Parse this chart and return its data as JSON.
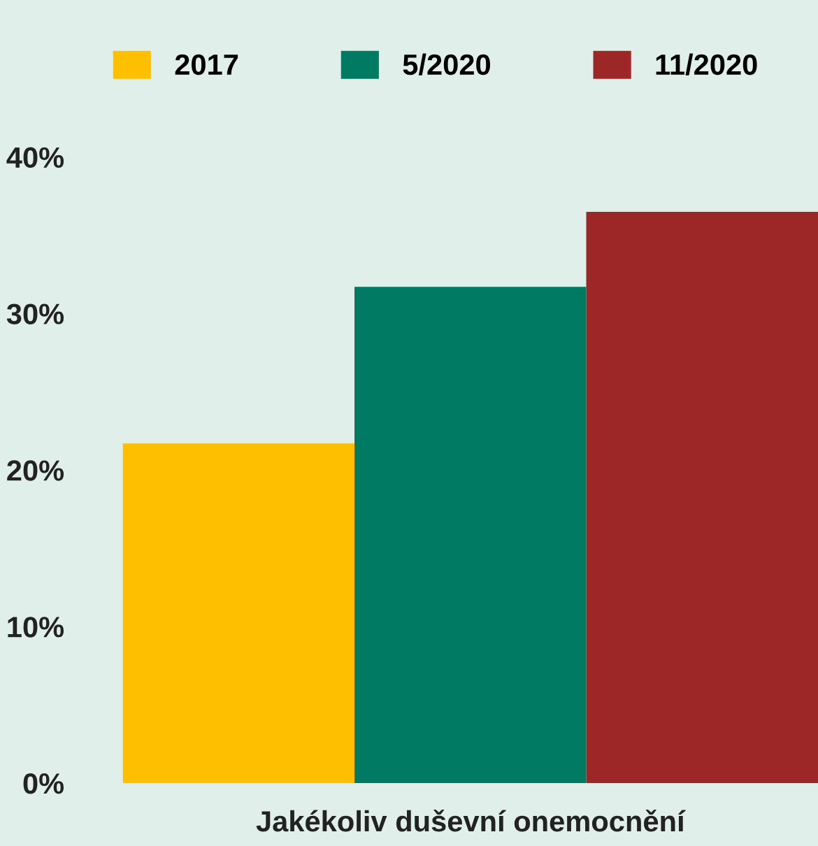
{
  "chart_data": {
    "type": "bar",
    "categories": [
      null
    ],
    "xlabel": "Jakékoliv duševní onemocnění",
    "series": [
      {
        "name": "2017",
        "color": "#fdbf00",
        "values": [
          21.7
        ]
      },
      {
        "name": "5/2020",
        "color": "#007a63",
        "values": [
          31.7
        ]
      },
      {
        "name": "11/2020",
        "color": "#9c2726",
        "values": [
          36.5
        ]
      }
    ],
    "ylim": [
      0,
      40
    ],
    "yticks": [
      {
        "value": 0,
        "label": "0%"
      },
      {
        "value": 10,
        "label": "10%"
      },
      {
        "value": 20,
        "label": "20%"
      },
      {
        "value": 30,
        "label": "30%"
      },
      {
        "value": 40,
        "label": "40%"
      }
    ],
    "legend": "top"
  }
}
